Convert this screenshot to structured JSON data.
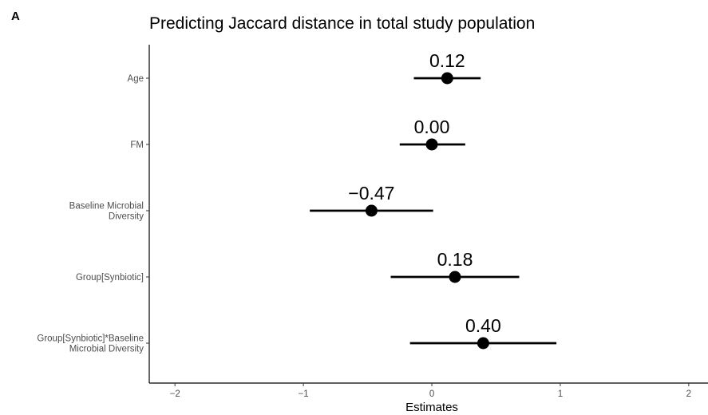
{
  "panel_letter": "A",
  "chart_data": {
    "type": "scatter",
    "title": "Predicting Jaccard distance in total study population",
    "xlabel": "Estimates",
    "ylabel": "",
    "xlim": [
      -2.2,
      2.15
    ],
    "xticks": [
      -2,
      -1,
      0,
      1,
      2
    ],
    "xtick_labels": [
      "−2",
      "−1",
      "0",
      "1",
      "2"
    ],
    "grid": false,
    "categories": [
      [
        "Age"
      ],
      [
        "FM"
      ],
      [
        "Baseline Microbial",
        "Diversity"
      ],
      [
        "Group[Synbiotic]"
      ],
      [
        "Group[Synbiotic]*Baseline",
        "Microbial Diversity"
      ]
    ],
    "estimates": [
      0.12,
      0.0,
      -0.47,
      0.18,
      0.4
    ],
    "ci_low": [
      -0.14,
      -0.25,
      -0.95,
      -0.32,
      -0.17
    ],
    "ci_high": [
      0.38,
      0.26,
      0.01,
      0.68,
      0.97
    ],
    "value_labels": [
      "0.12",
      "0.00",
      "−0.47",
      "0.18",
      "0.40"
    ]
  }
}
